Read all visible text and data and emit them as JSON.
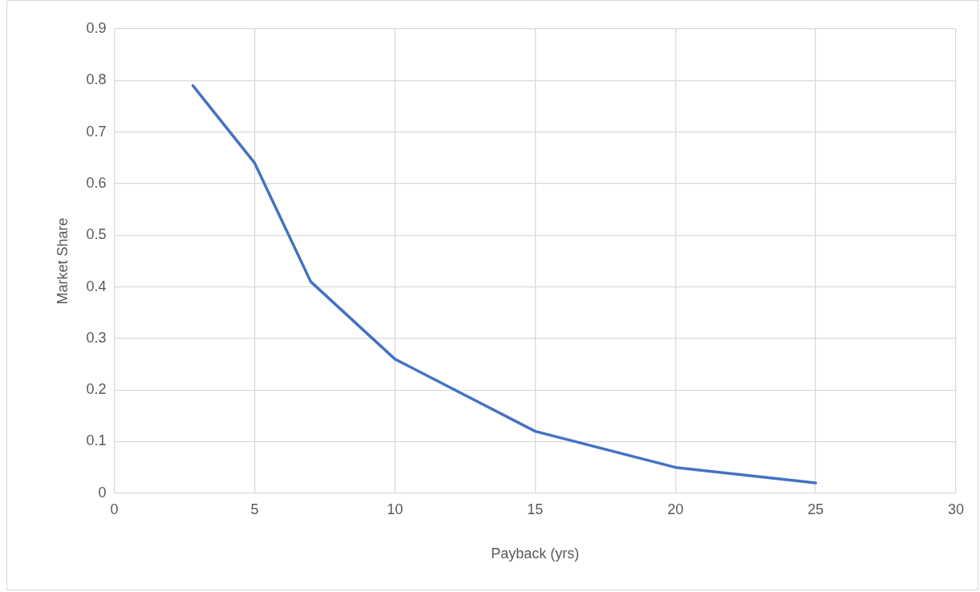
{
  "chart_data": {
    "type": "line",
    "xlabel": "Payback (yrs)",
    "ylabel": "Market Share",
    "x": [
      2.8,
      5,
      7,
      10,
      15,
      20,
      25
    ],
    "series": [
      {
        "color": "#4472c4",
        "values": [
          0.79,
          0.64,
          0.41,
          0.26,
          0.12,
          0.05,
          0.02
        ]
      }
    ],
    "xlim": [
      0,
      30
    ],
    "xticks": [
      0,
      5,
      10,
      15,
      20,
      25,
      30
    ],
    "ylim": [
      0,
      0.9
    ],
    "yticks": [
      0,
      0.1,
      0.2,
      0.3,
      0.4,
      0.5,
      0.6,
      0.7,
      0.8,
      0.9
    ],
    "grid": true,
    "legend": false,
    "marker": "none",
    "line_style": "solid"
  }
}
